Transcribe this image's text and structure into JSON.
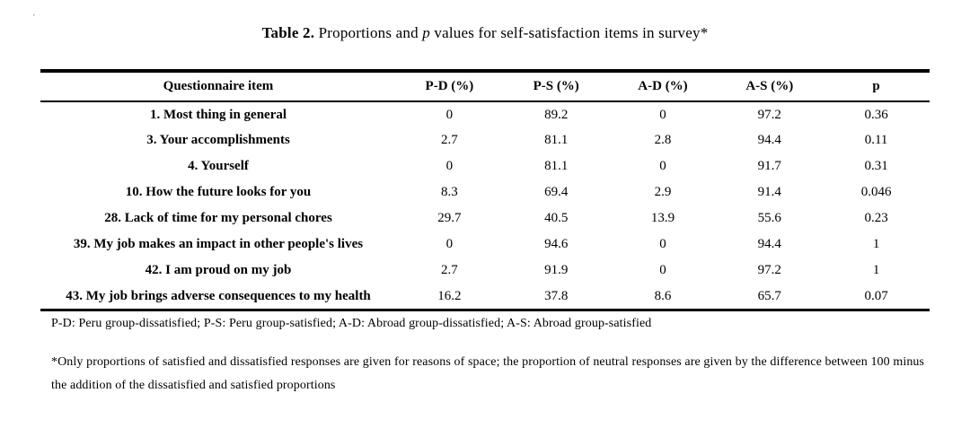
{
  "page": {
    "stray_mark": "ˊ"
  },
  "caption": {
    "label": "Table 2.",
    "text1": " Proportions and ",
    "p_symbol": "p",
    "text2": " values for self-satisfaction items in survey*"
  },
  "table": {
    "columns": [
      "Questionnaire item",
      "P-D (%)",
      "P-S (%)",
      "A-D (%)",
      "A-S (%)",
      "p"
    ],
    "rows": [
      [
        "1. Most thing in general",
        "0",
        "89.2",
        "0",
        "97.2",
        "0.36"
      ],
      [
        "3. Your accomplishments",
        "2.7",
        "81.1",
        "2.8",
        "94.4",
        "0.11"
      ],
      [
        "4. Yourself",
        "0",
        "81.1",
        "0",
        "91.7",
        "0.31"
      ],
      [
        "10. How the future looks for you",
        "8.3",
        "69.4",
        "2.9",
        "91.4",
        "0.046"
      ],
      [
        "28. Lack of time for my personal chores",
        "29.7",
        "40.5",
        "13.9",
        "55.6",
        "0.23"
      ],
      [
        "39. My job makes an impact in other people's lives",
        "0",
        "94.6",
        "0",
        "94.4",
        "1"
      ],
      [
        "42. I am proud on my job",
        "2.7",
        "91.9",
        "0",
        "97.2",
        "1"
      ],
      [
        "43. My job brings adverse consequences to my health",
        "16.2",
        "37.8",
        "8.6",
        "65.7",
        "0.07"
      ]
    ]
  },
  "footnotes": {
    "abbreviations": "P-D: Peru group-dissatisfied; P-S: Peru group-satisfied; A-D: Abroad group-dissatisfied; A-S: Abroad group-satisfied",
    "asterisk": "*Only proportions of satisfied and dissatisfied responses are given for reasons of space; the proportion of neutral responses are given by the difference between 100 minus the addition of the dissatisfied and satisfied proportions"
  }
}
